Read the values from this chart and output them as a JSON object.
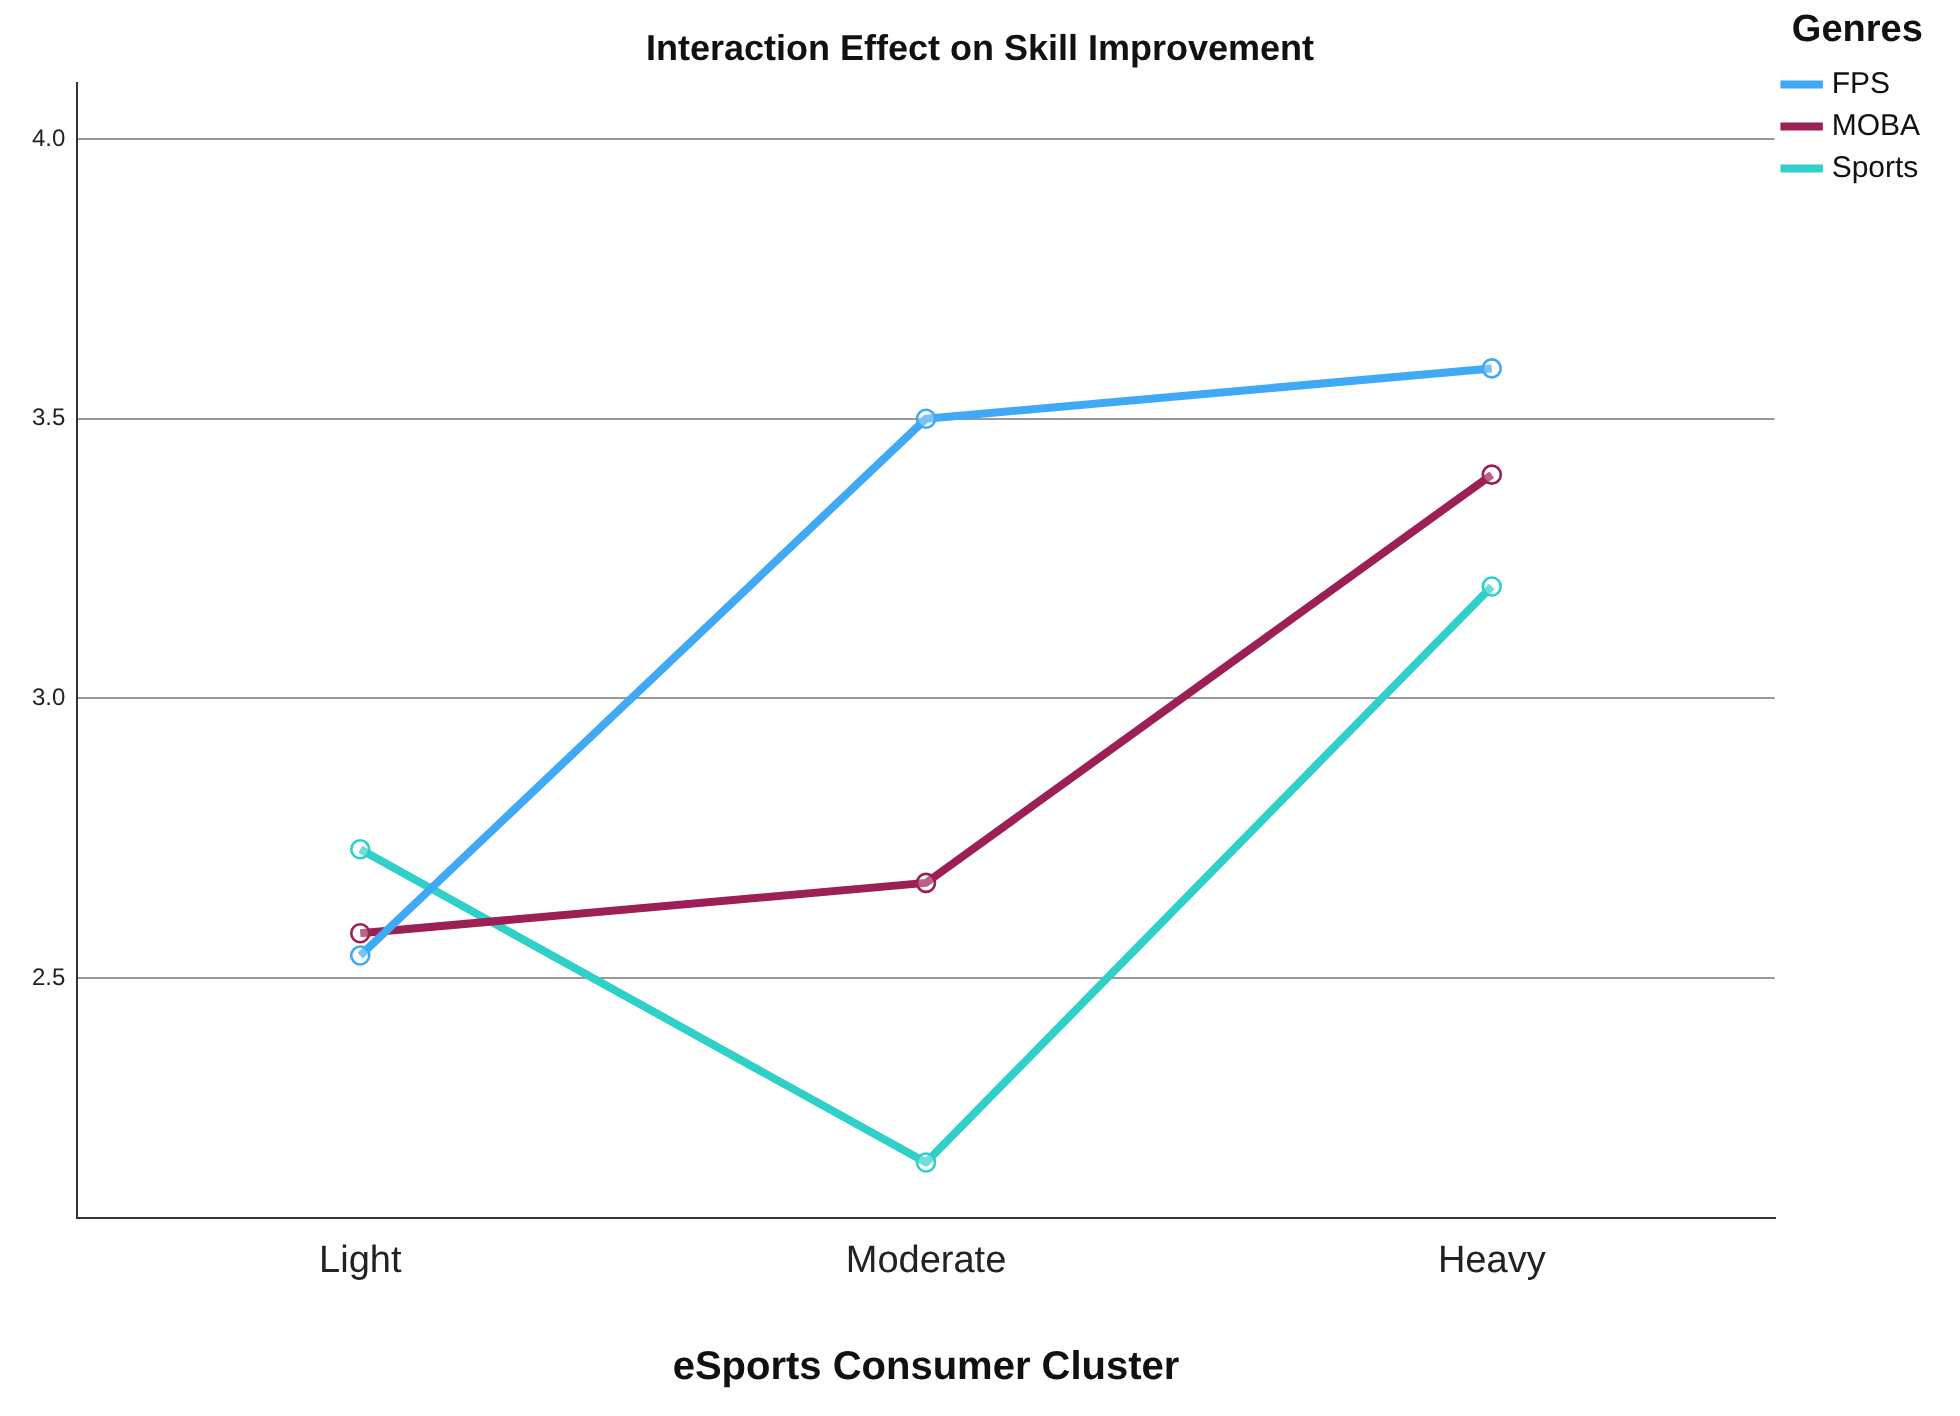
{
  "chart_data": {
    "type": "line",
    "title": "Interaction Effect on Skill Improvement",
    "xlabel": "eSports Consumer Cluster",
    "legend_title": "Genres",
    "categories": [
      "Light",
      "Moderate",
      "Heavy"
    ],
    "series": [
      {
        "name": "FPS",
        "color": "#3fa9f5",
        "values": [
          2.54,
          3.5,
          3.59
        ]
      },
      {
        "name": "MOBA",
        "color": "#9c1f55",
        "values": [
          2.58,
          2.67,
          3.4
        ]
      },
      {
        "name": "Sports",
        "color": "#2ed0c8",
        "values": [
          2.73,
          2.17,
          3.2
        ]
      }
    ],
    "ylim": [
      2.07,
      4.1
    ],
    "yticks": [
      {
        "value": 2.5,
        "label": "2.5"
      },
      {
        "value": 3,
        "label": "3.0"
      },
      {
        "value": 3.5,
        "label": "3.5"
      },
      {
        "value": 4,
        "label": "4.0"
      }
    ],
    "grid": "y",
    "legend": "top right",
    "marker": "circle",
    "line_style": "solid"
  }
}
